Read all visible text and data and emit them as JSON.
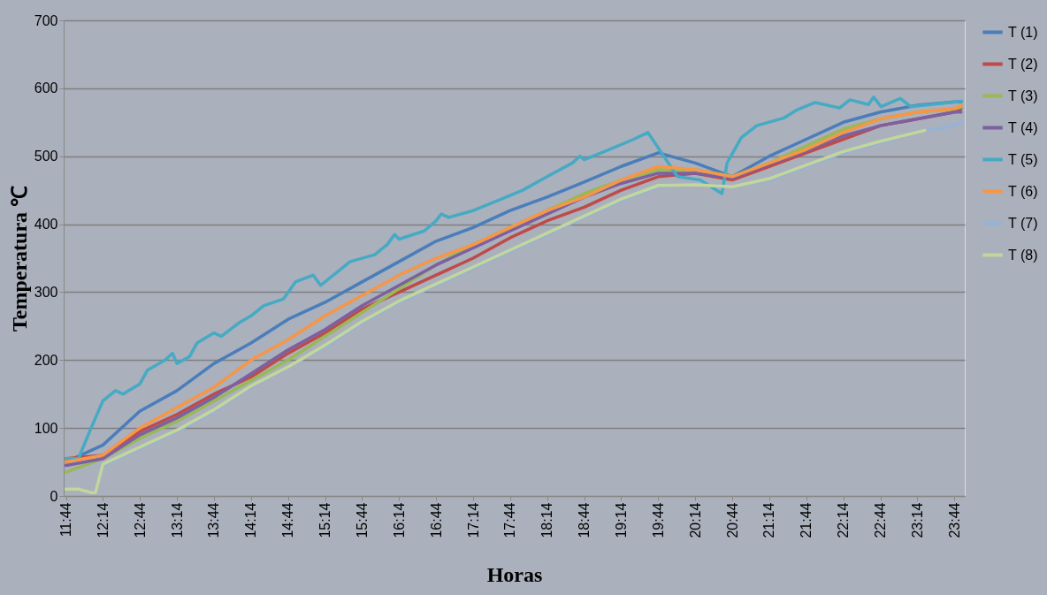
{
  "chart_data": {
    "type": "line",
    "xlabel": "Horas",
    "ylabel": "Temperatura ℃",
    "xlim": [
      11.7,
      23.87
    ],
    "ylim": [
      0,
      700
    ],
    "yticks": [
      0,
      100,
      200,
      300,
      400,
      500,
      600,
      700
    ],
    "xticks": [
      {
        "value": 11.73,
        "label": "11:44"
      },
      {
        "value": 12.23,
        "label": "12:14"
      },
      {
        "value": 12.73,
        "label": "12:44"
      },
      {
        "value": 13.23,
        "label": "13:14"
      },
      {
        "value": 13.73,
        "label": "13:44"
      },
      {
        "value": 14.23,
        "label": "14:14"
      },
      {
        "value": 14.73,
        "label": "14:44"
      },
      {
        "value": 15.23,
        "label": "15:14"
      },
      {
        "value": 15.73,
        "label": "15:44"
      },
      {
        "value": 16.23,
        "label": "16:14"
      },
      {
        "value": 16.73,
        "label": "16:44"
      },
      {
        "value": 17.23,
        "label": "17:14"
      },
      {
        "value": 17.73,
        "label": "17:44"
      },
      {
        "value": 18.23,
        "label": "18:14"
      },
      {
        "value": 18.73,
        "label": "18:44"
      },
      {
        "value": 19.23,
        "label": "19:14"
      },
      {
        "value": 19.73,
        "label": "19:44"
      },
      {
        "value": 20.23,
        "label": "20:14"
      },
      {
        "value": 20.73,
        "label": "20:44"
      },
      {
        "value": 21.23,
        "label": "21:14"
      },
      {
        "value": 21.73,
        "label": "21:44"
      },
      {
        "value": 22.23,
        "label": "22:14"
      },
      {
        "value": 22.73,
        "label": "22:44"
      },
      {
        "value": 23.23,
        "label": "23:14"
      },
      {
        "value": 23.73,
        "label": "23:44"
      }
    ],
    "x": [
      11.73,
      12.23,
      12.73,
      13.23,
      13.73,
      14.23,
      14.73,
      15.23,
      15.73,
      16.23,
      16.73,
      17.23,
      17.73,
      18.23,
      18.73,
      19.23,
      19.73,
      20.23,
      20.73,
      21.23,
      21.73,
      22.23,
      22.73,
      23.23,
      23.73,
      23.82
    ],
    "grid": "y",
    "legend": "right",
    "line_style": "solid",
    "series": [
      {
        "name": "T (1)",
        "color": "#4a7ebb",
        "values": [
          50,
          75,
          125,
          155,
          195,
          225,
          260,
          285,
          315,
          345,
          375,
          395,
          420,
          440,
          462,
          485,
          505,
          490,
          470,
          500,
          525,
          550,
          565,
          575,
          580,
          580
        ]
      },
      {
        "name": "T (2)",
        "color": "#be4b48",
        "values": [
          55,
          60,
          95,
          120,
          150,
          175,
          210,
          240,
          275,
          300,
          325,
          350,
          380,
          405,
          425,
          450,
          470,
          475,
          465,
          485,
          505,
          525,
          545,
          555,
          565,
          570
        ]
      },
      {
        "name": "T (3)",
        "color": "#98b954",
        "values": [
          35,
          55,
          85,
          110,
          140,
          170,
          200,
          235,
          270,
          305,
          340,
          370,
          395,
          420,
          445,
          465,
          480,
          480,
          470,
          490,
          515,
          540,
          555,
          565,
          570,
          572
        ]
      },
      {
        "name": "T (4)",
        "color": "#7d60a0",
        "values": [
          45,
          55,
          90,
          115,
          145,
          180,
          215,
          245,
          280,
          310,
          340,
          365,
          390,
          415,
          440,
          460,
          475,
          475,
          468,
          488,
          508,
          530,
          545,
          555,
          565,
          565
        ]
      },
      {
        "name": "T (5)",
        "color": "#46aac5",
        "x": [
          11.73,
          11.9,
          12.07,
          12.23,
          12.4,
          12.5,
          12.73,
          12.83,
          13.07,
          13.17,
          13.23,
          13.4,
          13.5,
          13.73,
          13.83,
          14.07,
          14.23,
          14.4,
          14.67,
          14.83,
          15.07,
          15.17,
          15.4,
          15.57,
          15.9,
          16.07,
          16.17,
          16.23,
          16.57,
          16.73,
          16.8,
          16.9,
          17.23,
          17.57,
          17.9,
          18.23,
          18.57,
          18.67,
          18.73,
          19.07,
          19.4,
          19.59,
          19.99,
          20.3,
          20.59,
          20.66,
          20.85,
          21.06,
          21.42,
          21.6,
          21.85,
          22.18,
          22.32,
          22.57,
          22.64,
          22.74,
          23.0,
          23.14,
          23.83
        ],
        "values": [
          55,
          55,
          100,
          140,
          155,
          150,
          165,
          185,
          200,
          210,
          195,
          205,
          225,
          240,
          235,
          255,
          265,
          280,
          290,
          315,
          325,
          310,
          330,
          345,
          355,
          370,
          385,
          378,
          390,
          405,
          415,
          410,
          420,
          435,
          450,
          470,
          490,
          500,
          495,
          510,
          525,
          535,
          470,
          465,
          445,
          490,
          527,
          545,
          556,
          568,
          579,
          571,
          583,
          576,
          587,
          573,
          585,
          573,
          581
        ]
      },
      {
        "name": "T (6)",
        "color": "#f79646",
        "values": [
          50,
          60,
          100,
          130,
          160,
          200,
          230,
          265,
          295,
          325,
          350,
          370,
          395,
          420,
          440,
          465,
          485,
          480,
          470,
          490,
          510,
          535,
          555,
          565,
          570,
          575
        ]
      },
      {
        "name": "T (7)",
        "color": "#95b3d7",
        "x": [
          11.73,
          11.9,
          12.07,
          12.13,
          12.23,
          12.73,
          13.23,
          13.73,
          14.23,
          14.73,
          15.23,
          15.73,
          16.23,
          16.73,
          17.23,
          17.73,
          18.23,
          18.73,
          19.23,
          19.73,
          20.23,
          20.73,
          21.23,
          21.73,
          22.23,
          22.73,
          23.23,
          23.73,
          23.83
        ],
        "values": [
          10,
          10,
          5,
          5,
          45,
          70,
          95,
          125,
          160,
          190,
          220,
          255,
          285,
          310,
          335,
          360,
          385,
          410,
          435,
          455,
          458,
          455,
          465,
          485,
          505,
          520,
          535,
          545,
          550
        ]
      },
      {
        "name": "T (8)",
        "color": "#c3d69b",
        "x": [
          11.73,
          11.9,
          12.07,
          12.13,
          12.23,
          12.73,
          13.23,
          13.73,
          14.23,
          14.73,
          15.23,
          15.73,
          16.23,
          16.73,
          17.23,
          17.73,
          18.23,
          18.73,
          19.23,
          19.73,
          20.23,
          20.73,
          21.23,
          21.73,
          22.23,
          22.73,
          23.33
        ],
        "values": [
          10,
          10,
          5,
          5,
          47,
          72,
          97,
          127,
          162,
          190,
          222,
          257,
          287,
          312,
          337,
          362,
          387,
          412,
          437,
          457,
          458,
          455,
          467,
          487,
          507,
          522,
          538
        ]
      }
    ]
  }
}
